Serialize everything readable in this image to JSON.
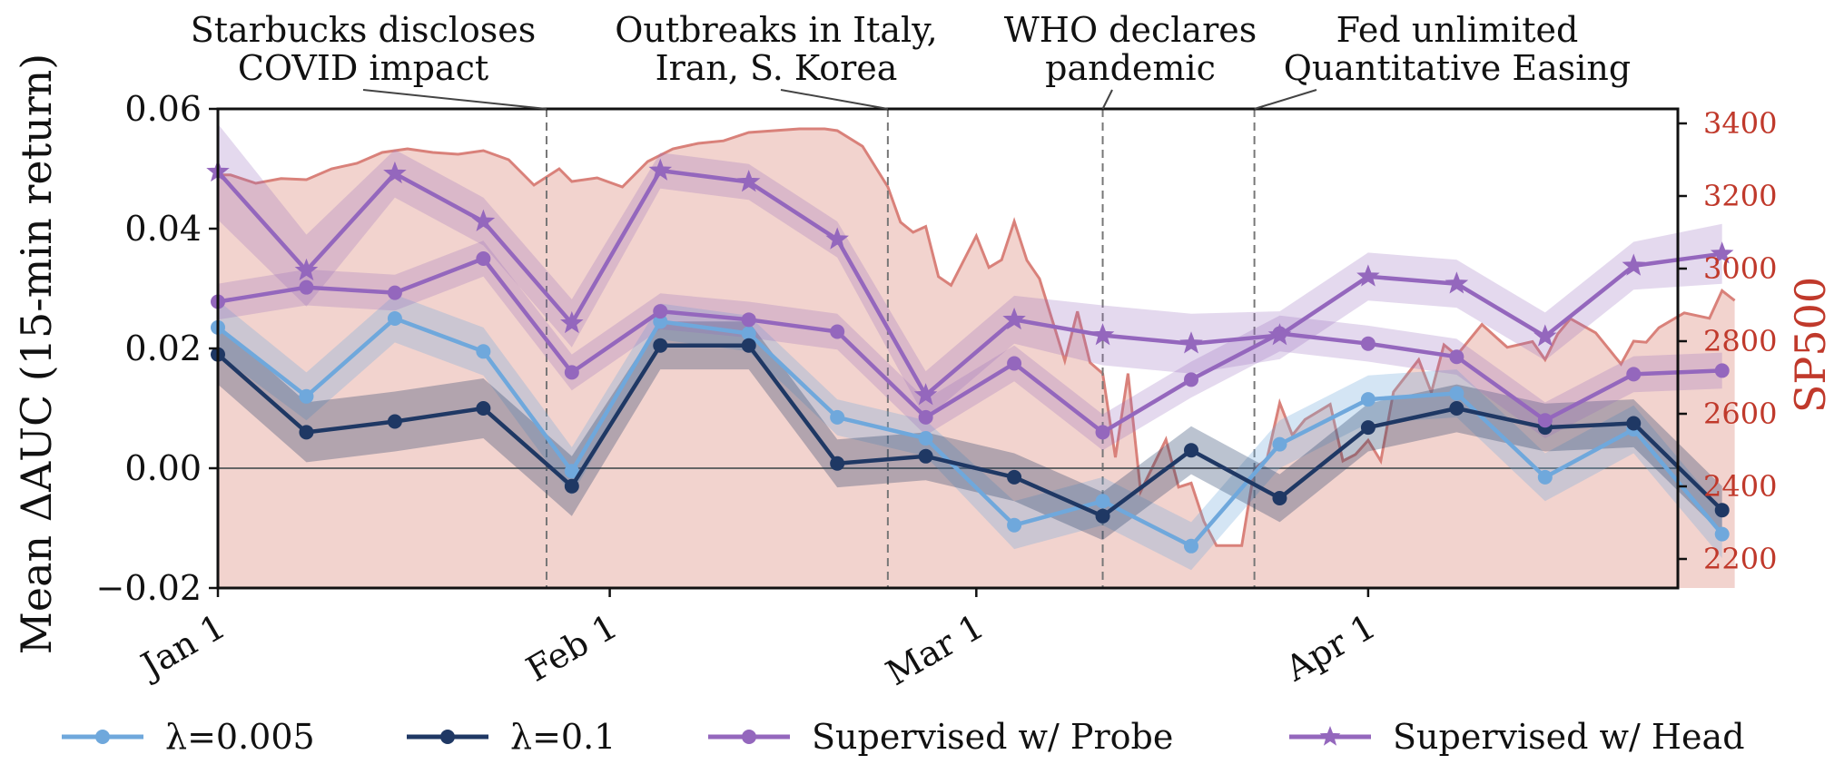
{
  "chart_data": {
    "type": "line",
    "x_axis": {
      "type": "date",
      "year_not_shown": true,
      "ticks": [
        "Jan 1",
        "Feb 1",
        "Mar 1",
        "Apr 1"
      ],
      "range": [
        "Jan 1",
        "May 1"
      ]
    },
    "y_left": {
      "label": "Mean ΔAUC (15-min return)",
      "ticks": [
        "0.06",
        "0.04",
        "0.02",
        "0.00",
        "−0.02"
      ],
      "tick_values": [
        0.06,
        0.04,
        0.02,
        0.0,
        -0.02
      ],
      "ylim": [
        -0.02,
        0.06
      ]
    },
    "y_right": {
      "label": "SP500",
      "ticks": [
        "3400",
        "3200",
        "3000",
        "2800",
        "2600",
        "2400",
        "2200"
      ],
      "tick_values": [
        3400,
        3200,
        3000,
        2800,
        2600,
        2400,
        2200
      ],
      "ylim": [
        2120,
        3440
      ]
    },
    "zero_line": true,
    "legend_position": "bottom",
    "events": [
      {
        "date": "Jan 27",
        "label_line1": "Starbucks discloses",
        "label_line2": "COVID impact"
      },
      {
        "date": "Feb 23",
        "label_line1": "Outbreaks in Italy,",
        "label_line2": "Iran, S. Korea"
      },
      {
        "date": "Mar 11",
        "label_line1": "WHO declares",
        "label_line2": "pandemic"
      },
      {
        "date": "Mar 23",
        "label_line1": "Fed unlimited",
        "label_line2": "Quantitative Easing"
      }
    ],
    "x_dates": [
      "Jan 1",
      "Jan 8",
      "Jan 15",
      "Jan 22",
      "Jan 29",
      "Feb 5",
      "Feb 12",
      "Feb 19",
      "Feb 26",
      "Mar 4",
      "Mar 11",
      "Mar 18",
      "Mar 25",
      "Apr 1",
      "Apr 8",
      "Apr 15",
      "Apr 22",
      "Apr 29"
    ],
    "series": [
      {
        "name": "λ=0.005",
        "color": "#6fa8dc",
        "marker": "circle",
        "values": [
          0.0235,
          0.012,
          0.025,
          0.0195,
          -0.0005,
          0.0245,
          0.0225,
          0.0085,
          0.005,
          -0.0095,
          -0.0055,
          -0.013,
          0.004,
          0.0115,
          0.0125,
          -0.0015,
          0.0065,
          -0.011
        ],
        "band": [
          0.0045,
          0.004,
          0.004,
          0.004,
          0.004,
          0.003,
          0.003,
          0.003,
          0.003,
          0.004,
          0.004,
          0.004,
          0.004,
          0.004,
          0.004,
          0.004,
          0.004,
          0.004
        ]
      },
      {
        "name": "λ=0.1",
        "color": "#1f3864",
        "marker": "circle",
        "values": [
          0.019,
          0.006,
          0.0078,
          0.01,
          -0.003,
          0.0205,
          0.0205,
          0.0008,
          0.002,
          -0.0015,
          -0.008,
          0.003,
          -0.005,
          0.0068,
          0.01,
          0.0068,
          0.0075,
          -0.007
        ],
        "band": [
          0.005,
          0.005,
          0.005,
          0.005,
          0.005,
          0.004,
          0.004,
          0.004,
          0.004,
          0.004,
          0.004,
          0.004,
          0.004,
          0.004,
          0.004,
          0.004,
          0.004,
          0.004
        ]
      },
      {
        "name": "Supervised w/ Probe",
        "color": "#9467bd",
        "marker": "circle",
        "values": [
          0.0278,
          0.0302,
          0.0293,
          0.035,
          0.016,
          0.0262,
          0.0248,
          0.0228,
          0.0085,
          0.0175,
          0.006,
          0.0148,
          0.0225,
          0.0208,
          0.0186,
          0.008,
          0.0157,
          0.0163
        ],
        "band": [
          0.003,
          0.003,
          0.003,
          0.003,
          0.003,
          0.003,
          0.003,
          0.003,
          0.003,
          0.003,
          0.003,
          0.003,
          0.003,
          0.003,
          0.003,
          0.003,
          0.003,
          0.003
        ]
      },
      {
        "name": "Supervised w/ Head",
        "color": "#9467bd",
        "marker": "star",
        "values": [
          0.0495,
          0.033,
          0.0492,
          0.0412,
          0.0242,
          0.0497,
          0.0478,
          0.0382,
          0.0122,
          0.0248,
          0.0222,
          0.0208,
          0.0222,
          0.032,
          0.0308,
          0.022,
          0.0338,
          0.0358
        ],
        "band": [
          0.008,
          0.006,
          0.004,
          0.004,
          0.004,
          0.003,
          0.003,
          0.003,
          0.004,
          0.004,
          0.005,
          0.005,
          0.004,
          0.004,
          0.004,
          0.004,
          0.004,
          0.005
        ]
      }
    ],
    "sp500": {
      "name": "SP500",
      "color": "#d9817a",
      "fill": "#f2d3ce",
      "dates": [
        "Jan 1",
        "Jan 2",
        "Jan 4",
        "Jan 6",
        "Jan 8",
        "Jan 10",
        "Jan 12",
        "Jan 14",
        "Jan 16",
        "Jan 18",
        "Jan 20",
        "Jan 22",
        "Jan 24",
        "Jan 26",
        "Jan 28",
        "Jan 29",
        "Jan 31",
        "Feb 2",
        "Feb 4",
        "Feb 6",
        "Feb 8",
        "Feb 10",
        "Feb 12",
        "Feb 14",
        "Feb 16",
        "Feb 18",
        "Feb 19",
        "Feb 21",
        "Feb 23",
        "Feb 24",
        "Feb 25",
        "Feb 26",
        "Feb 27",
        "Feb 28",
        "Mar 1",
        "Mar 2",
        "Mar 3",
        "Mar 4",
        "Mar 5",
        "Mar 6",
        "Mar 8",
        "Mar 9",
        "Mar 10",
        "Mar 11",
        "Mar 12",
        "Mar 13",
        "Mar 14",
        "Mar 16",
        "Mar 17",
        "Mar 18",
        "Mar 19",
        "Mar 20",
        "Mar 22",
        "Mar 23",
        "Mar 24",
        "Mar 25",
        "Mar 26",
        "Mar 27",
        "Mar 29",
        "Mar 30",
        "Mar 31",
        "Apr 1",
        "Apr 2",
        "Apr 3",
        "Apr 5",
        "Apr 6",
        "Apr 7",
        "Apr 8",
        "Apr 10",
        "Apr 12",
        "Apr 14",
        "Apr 15",
        "Apr 16",
        "Apr 17",
        "Apr 19",
        "Apr 21",
        "Apr 22",
        "Apr 23",
        "Apr 24",
        "Apr 26",
        "Apr 28",
        "Apr 29",
        "Apr 30"
      ],
      "values": [
        3258,
        3258,
        3235,
        3248,
        3245,
        3275,
        3290,
        3320,
        3330,
        3320,
        3315,
        3325,
        3300,
        3230,
        3275,
        3240,
        3250,
        3225,
        3295,
        3330,
        3345,
        3352,
        3375,
        3380,
        3385,
        3385,
        3380,
        3337,
        3225,
        3128,
        3100,
        3116,
        2978,
        2954,
        3090,
        3003,
        3024,
        3130,
        3023,
        2972,
        2746,
        2882,
        2741,
        2711,
        2480,
        2711,
        2386,
        2529,
        2398,
        2409,
        2304,
        2237,
        2237,
        2448,
        2476,
        2630,
        2541,
        2584,
        2626,
        2470,
        2488,
        2527,
        2470,
        2660,
        2749,
        2659,
        2790,
        2761,
        2846,
        2783,
        2799,
        2749,
        2820,
        2862,
        2823,
        2737,
        2800,
        2797,
        2837,
        2878,
        2863,
        2939,
        2912
      ]
    }
  }
}
